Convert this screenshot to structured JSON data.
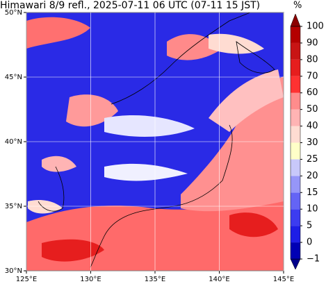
{
  "title": "Himawari 8/9 refl., 2025-07-11 06 UTC (07-11 15 JST)",
  "map": {
    "xlim": [
      125,
      145
    ],
    "ylim": [
      30,
      50
    ],
    "xticks": [
      {
        "value": 125,
        "label": "125°E"
      },
      {
        "value": 130,
        "label": "130°E"
      },
      {
        "value": 135,
        "label": "135°E"
      },
      {
        "value": 140,
        "label": "140°E"
      },
      {
        "value": 145,
        "label": "145°E"
      }
    ],
    "yticks": [
      {
        "value": 30,
        "label": "30°N"
      },
      {
        "value": 35,
        "label": "35°N"
      },
      {
        "value": 40,
        "label": "40°N"
      },
      {
        "value": 45,
        "label": "45°N"
      },
      {
        "value": 50,
        "label": "50°N"
      }
    ],
    "grid": true,
    "grid_color": "#ffffff"
  },
  "colorbar": {
    "unit": "%",
    "levels": [
      {
        "value": -1,
        "label": "−1"
      },
      0,
      5,
      10,
      15,
      20,
      25,
      30,
      40,
      50,
      60,
      70,
      80,
      90,
      100
    ],
    "colors": [
      "#00008b",
      "#0000b4",
      "#1e1ee6",
      "#3c3cf0",
      "#6464f5",
      "#9696f8",
      "#c8c8fa",
      "#ffffc8",
      "#ffdcd2",
      "#ffb4b4",
      "#ff8c8c",
      "#ff3232",
      "#e61e1e",
      "#c81414",
      "#b40000",
      "#8b0000"
    ]
  }
}
